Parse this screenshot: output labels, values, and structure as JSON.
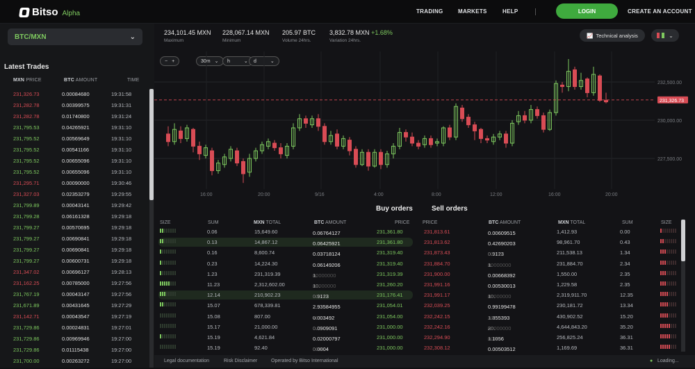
{
  "brand": {
    "name": "Bitso",
    "tag": "Alpha"
  },
  "nav": {
    "trading": "TRADING",
    "markets": "MARKETS",
    "help": "HELP",
    "login": "LOGIN",
    "create": "CREATE AN ACCOUNT"
  },
  "pair": {
    "label": "BTC/MXN"
  },
  "latest": {
    "title": "Latest Trades",
    "head": {
      "price_cur": "MXN",
      "price": "PRICE",
      "amt_cur": "BTC",
      "amt": "AMOUNT",
      "time": "TIME"
    },
    "rows": [
      {
        "p": "231,326.73",
        "a": "0.00084680",
        "t": "19:31:58",
        "s": "r"
      },
      {
        "p": "231,282.78",
        "a": "0.00399575",
        "t": "19:31:31",
        "s": "r"
      },
      {
        "p": "231,282.78",
        "a": "0.01740800",
        "t": "19:31:24",
        "s": "r"
      },
      {
        "p": "231,795.53",
        "a": "0.04265921",
        "t": "19:31:10",
        "s": "g"
      },
      {
        "p": "231,795.52",
        "a": "0.00569649",
        "t": "19:31:10",
        "s": "g"
      },
      {
        "p": "231,795.52",
        "a": "0.00541166",
        "t": "19:31:10",
        "s": "g"
      },
      {
        "p": "231,795.52",
        "a": "0.00655096",
        "t": "19:31:10",
        "s": "g"
      },
      {
        "p": "231,795.52",
        "a": "0.00655096",
        "t": "19:31:10",
        "s": "g"
      },
      {
        "p": "231,295.71",
        "a": "0.00090000",
        "t": "19:30:46",
        "s": "r"
      },
      {
        "p": "231,327.03",
        "a": "0.02353279",
        "t": "19:29:55",
        "s": "r"
      },
      {
        "p": "231,799.89",
        "a": "0.00043141",
        "t": "19:29:42",
        "s": "g"
      },
      {
        "p": "231,799.28",
        "a": "0.06161328",
        "t": "19:29:18",
        "s": "g"
      },
      {
        "p": "231,799.27",
        "a": "0.00570695",
        "t": "19:29:18",
        "s": "g"
      },
      {
        "p": "231,799.27",
        "a": "0.00690841",
        "t": "19:29:18",
        "s": "g"
      },
      {
        "p": "231,799.27",
        "a": "0.00690841",
        "t": "19:29:18",
        "s": "g"
      },
      {
        "p": "231,799.27",
        "a": "0.00600731",
        "t": "19:29:18",
        "s": "g"
      },
      {
        "p": "231,347.02",
        "a": "0.00696127",
        "t": "19:28:13",
        "s": "r"
      },
      {
        "p": "231,162.25",
        "a": "0.00785000",
        "t": "19:27:56",
        "s": "r"
      },
      {
        "p": "231,767.19",
        "a": "0.00043147",
        "t": "19:27:56",
        "s": "g"
      },
      {
        "p": "231,671.89",
        "a": "0.00431645",
        "t": "19:27:29",
        "s": "g"
      },
      {
        "p": "231,142.71",
        "a": "0.00043547",
        "t": "19:27:19",
        "s": "r"
      },
      {
        "p": "231,729.86",
        "a": "0.00024831",
        "t": "19:27:01",
        "s": "g"
      },
      {
        "p": "231,729.86",
        "a": "0.00969946",
        "t": "19:27:00",
        "s": "g"
      },
      {
        "p": "231,729.86",
        "a": "0.01115438",
        "t": "19:27:00",
        "s": "g"
      },
      {
        "p": "231,700.00",
        "a": "0.00263272",
        "t": "19:27:00",
        "s": "g"
      }
    ]
  },
  "stats": [
    {
      "v": "234,101.45 MXN",
      "l": "Maximum"
    },
    {
      "v": "228,067.14 MXN",
      "l": "Minimum"
    },
    {
      "v": "205.97 BTC",
      "l": "Volume 24hrs."
    },
    {
      "v": "3,832.78 MXN",
      "chg": "+1.68%",
      "l": "Variation 24hrs."
    }
  ],
  "chart_controls": {
    "minus": "−",
    "plus": "+",
    "interval": "30m",
    "h": "h",
    "d": "d",
    "ta": "Technical analysis"
  },
  "chart_data": {
    "type": "candlestick",
    "y_ticks": [
      "232,500.00",
      "230,000.00",
      "227,500.00"
    ],
    "x_ticks": [
      "16:00",
      "20:00",
      "9/16",
      "4:00",
      "8:00",
      "12:00",
      "16:00",
      "20:00"
    ],
    "last_price": "231,326.73",
    "ylim": [
      225500,
      234500
    ],
    "candles": [
      [
        229100,
        228600,
        229600,
        228300
      ],
      [
        228600,
        229400,
        229800,
        228400
      ],
      [
        229300,
        228800,
        229600,
        228500
      ],
      [
        228800,
        229500,
        229700,
        228600
      ],
      [
        229400,
        228300,
        229500,
        227900
      ],
      [
        228300,
        227800,
        228600,
        227400
      ],
      [
        227700,
        228200,
        228400,
        227500
      ],
      [
        228000,
        226700,
        228200,
        226400
      ],
      [
        226700,
        227200,
        227400,
        226500
      ],
      [
        227100,
        227600,
        227800,
        226900
      ],
      [
        227500,
        228100,
        228300,
        227300
      ],
      [
        228000,
        227200,
        228200,
        227000
      ],
      [
        227300,
        226500,
        227500,
        225900
      ],
      [
        226600,
        227500,
        227800,
        226300
      ],
      [
        227500,
        228000,
        228200,
        227300
      ],
      [
        228000,
        228400,
        228600,
        227800
      ],
      [
        228300,
        228600,
        228800,
        228100
      ],
      [
        228500,
        228200,
        228700,
        228000
      ],
      [
        228200,
        227800,
        228500,
        227500
      ],
      [
        227700,
        228300,
        228500,
        227500
      ],
      [
        228300,
        229500,
        229800,
        228100
      ],
      [
        229500,
        230100,
        230400,
        229300
      ],
      [
        230100,
        229800,
        230300,
        229500
      ],
      [
        229700,
        230100,
        230300,
        229500
      ],
      [
        230100,
        229600,
        230400,
        229300
      ],
      [
        229600,
        228600,
        229800,
        228400
      ],
      [
        228600,
        229000,
        229300,
        228400
      ],
      [
        229100,
        228300,
        229400,
        228100
      ],
      [
        228300,
        228800,
        229000,
        228100
      ],
      [
        228700,
        228000,
        228900,
        227700
      ],
      [
        228100,
        227100,
        228300,
        226900
      ],
      [
        227100,
        227900,
        228100,
        227000
      ],
      [
        227900,
        227000,
        228100,
        226700
      ],
      [
        227000,
        227900,
        228100,
        226900
      ],
      [
        227900,
        227100,
        228100,
        226800
      ],
      [
        227100,
        227800,
        228000,
        226900
      ],
      [
        227800,
        228300,
        228500,
        227500
      ],
      [
        228300,
        229200,
        229500,
        228100
      ],
      [
        229200,
        228900,
        229400,
        228600
      ],
      [
        228900,
        228500,
        229200,
        228300
      ],
      [
        228500,
        228300,
        228700,
        228100
      ],
      [
        228400,
        228800,
        229000,
        228200
      ],
      [
        228800,
        228400,
        229000,
        228200
      ],
      [
        228500,
        228600,
        228800,
        228300
      ],
      [
        228500,
        229500,
        229600,
        228300
      ],
      [
        229500,
        228900,
        229700,
        228700
      ],
      [
        228900,
        230900,
        231100,
        228700
      ],
      [
        230800,
        230100,
        231000,
        229900
      ],
      [
        230200,
        229700,
        230400,
        229500
      ],
      [
        229700,
        229300,
        229900,
        228700
      ],
      [
        229400,
        228800,
        229500,
        228500
      ],
      [
        228800,
        228700,
        229000,
        228500
      ],
      [
        228600,
        228900,
        229100,
        228400
      ],
      [
        228900,
        229100,
        229300,
        228700
      ],
      [
        229100,
        228500,
        229300,
        228200
      ],
      [
        228500,
        229800,
        230000,
        228300
      ],
      [
        229900,
        230300,
        230600,
        229700
      ],
      [
        230300,
        230000,
        230600,
        229800
      ],
      [
        230000,
        230700,
        231000,
        229800
      ],
      [
        230700,
        230300,
        230900,
        230100
      ],
      [
        230300,
        229400,
        230500,
        229200
      ],
      [
        229400,
        230500,
        230700,
        229300
      ],
      [
        230500,
        232400,
        232600,
        230300
      ],
      [
        232300,
        232200,
        232500,
        231800
      ],
      [
        232200,
        233200,
        234000,
        231900
      ],
      [
        233300,
        232200,
        233500,
        232000
      ],
      [
        232200,
        232600,
        233100,
        232000
      ],
      [
        232700,
        231800,
        232800,
        231500
      ],
      [
        231800,
        233000,
        233500,
        231600
      ],
      [
        232900,
        231300,
        233000,
        231200
      ],
      [
        231300,
        231200,
        231800,
        231100
      ]
    ]
  },
  "orders": {
    "buy_title": "Buy orders",
    "sell_title": "Sell orders",
    "head": {
      "size": "SIZE",
      "sum": "SUM",
      "mxn": "MXN",
      "total": "TOTAL",
      "btc": "BTC",
      "amount": "AMOUNT",
      "price": "PRICE"
    },
    "buy": [
      {
        "size": 2,
        "sum": "0.06",
        "total": "15,649.60",
        "amt": "0.06764127",
        "amt_tail": "",
        "price": "231,361.80"
      },
      {
        "size": 2,
        "sum": "0.13",
        "total": "14,867.12",
        "amt": "0.06425921",
        "amt_tail": "",
        "price": "231,361.80"
      },
      {
        "size": 1,
        "sum": "0.16",
        "total": "8,600.74",
        "amt": "0.03718124",
        "amt_tail": "",
        "price": "231,319.40"
      },
      {
        "size": 1,
        "sum": "0.23",
        "total": "14,224.30",
        "amt": "0.06149206",
        "amt_tail": "",
        "price": "231,319.40"
      },
      {
        "size": 1,
        "sum": "1.23",
        "total": "231,319.39",
        "amt": "1.",
        "amt_tail": "00000000",
        "price": "231,319.39"
      },
      {
        "size": 5,
        "sum": "11.23",
        "total": "2,312,602.00",
        "amt": "10.",
        "amt_tail": "00000000",
        "price": "231,260.20"
      },
      {
        "size": 3,
        "sum": "12.14",
        "total": "210,902.23",
        "amt": "0.9123",
        "amt_tail": "0000",
        "price": "231,176.41"
      },
      {
        "size": 2,
        "sum": "15.07",
        "total": "678,339.81",
        "amt": "2.93584955",
        "amt_tail": "",
        "price": "231,054.01"
      },
      {
        "size": 0,
        "sum": "15.08",
        "total": "807.00",
        "amt": "0.003492",
        "amt_tail": "70",
        "price": "231,054.00"
      },
      {
        "size": 0,
        "sum": "15.17",
        "total": "21,000.00",
        "amt": "0.0909091",
        "amt_tail": "0",
        "price": "231,000.00"
      },
      {
        "size": 1,
        "sum": "15.19",
        "total": "4,621.84",
        "amt": "0.02000797",
        "amt_tail": "",
        "price": "231,000.00"
      },
      {
        "size": 0,
        "sum": "15.19",
        "total": "92.40",
        "amt": "0.0004",
        "amt_tail": "0000",
        "price": "231,000.00"
      }
    ],
    "sell": [
      {
        "price": "231,813.61",
        "amt": "0.00609515",
        "amt_tail": "",
        "total": "1,412.93",
        "sum": "0.00",
        "size": 1
      },
      {
        "price": "231,813.62",
        "amt": "0.42690203",
        "amt_tail": "",
        "total": "98,961.70",
        "sum": "0.43",
        "size": 2
      },
      {
        "price": "231,873.43",
        "amt": "0.9123",
        "amt_tail": "0000",
        "total": "211,538.13",
        "sum": "1.34",
        "size": 3
      },
      {
        "price": "231,884.70",
        "amt": "1.",
        "amt_tail": "00000000",
        "total": "231,884.70",
        "sum": "2.34",
        "size": 3
      },
      {
        "price": "231,900.00",
        "amt": "0.00668392",
        "amt_tail": "",
        "total": "1,550.00",
        "sum": "2.35",
        "size": 3
      },
      {
        "price": "231,991.16",
        "amt": "0.00530013",
        "amt_tail": "",
        "total": "1,229.58",
        "sum": "2.35",
        "size": 3
      },
      {
        "price": "231,991.17",
        "amt": "10.",
        "amt_tail": "00000000",
        "total": "2,319,911.70",
        "sum": "12.35",
        "size": 4
      },
      {
        "price": "232,039.25",
        "amt": "0.99199478",
        "amt_tail": "",
        "total": "230,181.72",
        "sum": "13.34",
        "size": 4
      },
      {
        "price": "232,242.15",
        "amt": "1.855393",
        "amt_tail": "30",
        "total": "430,902.52",
        "sum": "15.20",
        "size": 4
      },
      {
        "price": "232,242.16",
        "amt": "20.",
        "amt_tail": "00000000",
        "total": "4,644,843.20",
        "sum": "35.20",
        "size": 5
      },
      {
        "price": "232,294.90",
        "amt": "1.1056",
        "amt_tail": "0000",
        "total": "256,825.24",
        "sum": "36.31",
        "size": 5
      },
      {
        "price": "232,308.12",
        "amt": "0.00503512",
        "amt_tail": "",
        "total": "1,169.69",
        "sum": "36.31",
        "size": 5
      }
    ]
  },
  "footer": {
    "legal": "Legal documentation",
    "risk": "Risk Disclaimer",
    "operated": "Operated by Bitso International",
    "loading": "Loading..."
  },
  "colors": {
    "green": "#7ec95f",
    "red": "#d94c55",
    "accent": "#3faa3e"
  }
}
